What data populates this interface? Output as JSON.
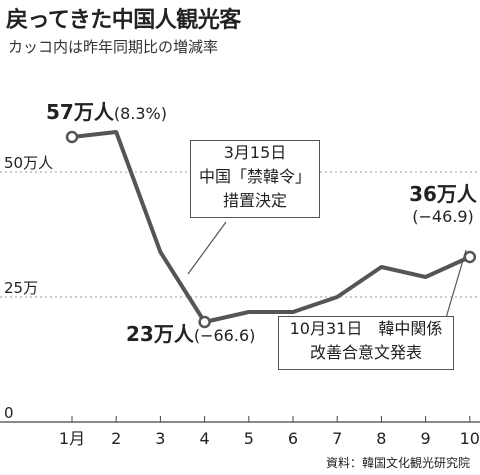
{
  "title": "戻ってきた中国人観光客",
  "subtitle": "カッコ内は昨年同期比の増減率",
  "source": "資料：韓国文化観光研究院",
  "chart_data": {
    "type": "line",
    "title": "戻ってきた中国人観光客",
    "subtitle": "カッコ内は昨年同期比の増減率",
    "x": [
      1,
      2,
      3,
      4,
      5,
      6,
      7,
      8,
      9,
      10
    ],
    "x_tick_labels": [
      "1月",
      "2",
      "3",
      "4",
      "5",
      "6",
      "7",
      "8",
      "9",
      "10"
    ],
    "y_tick_labels": [
      "0",
      "25万",
      "50万人"
    ],
    "y_ticks": [
      0,
      25,
      50
    ],
    "ylim": [
      0,
      60
    ],
    "units": "万人",
    "series": [
      {
        "values": [
          57,
          58,
          34,
          20,
          22,
          22,
          25,
          31,
          29,
          33
        ],
        "color": "#555555"
      }
    ],
    "grid": "dashed horizontal at 25 and 50",
    "point_labels": [
      {
        "value": "57万人",
        "change": "(8.3%)"
      },
      {
        "value": "23万人",
        "change": "(−66.6)"
      },
      {
        "value": "36万人",
        "change": "(−46.9)"
      }
    ],
    "annotations": [
      {
        "lines": [
          "3月15日",
          "中国「禁韓令」",
          "措置決定"
        ]
      },
      {
        "lines": [
          "10月31日　韓中関係",
          "改善合意文発表"
        ]
      }
    ]
  }
}
